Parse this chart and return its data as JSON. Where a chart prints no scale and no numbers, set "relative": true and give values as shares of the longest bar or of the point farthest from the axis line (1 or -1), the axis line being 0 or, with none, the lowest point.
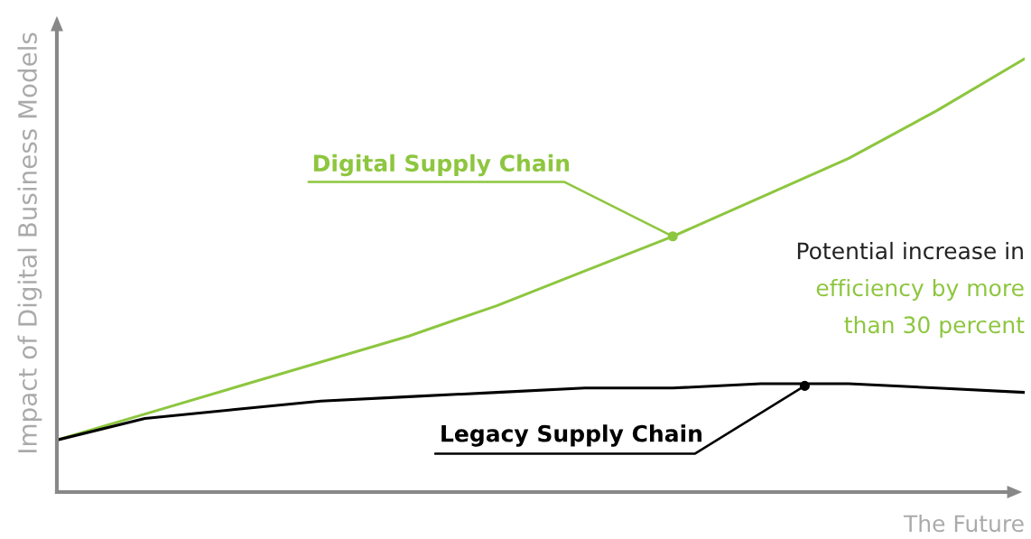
{
  "chart_data": {
    "type": "line",
    "relative": true,
    "xlabel": "The Future",
    "ylabel": "Impact of Digital Business Models",
    "categories": [
      null,
      null,
      null,
      null,
      null,
      null,
      null,
      null,
      null,
      null,
      null,
      null
    ],
    "series": [
      {
        "name": "Digital Supply Chain",
        "color": "#8dc63f",
        "values": [
          0.12,
          0.18,
          0.24,
          0.3,
          0.36,
          0.43,
          0.51,
          0.59,
          0.68,
          0.77,
          0.88,
          1.0
        ]
      },
      {
        "name": "Legacy Supply Chain",
        "color": "#000000",
        "values": [
          0.12,
          0.17,
          0.19,
          0.21,
          0.22,
          0.23,
          0.24,
          0.24,
          0.25,
          0.25,
          0.24,
          0.23
        ]
      }
    ],
    "annotations": [
      "Potential increase in",
      "efficiency by more",
      "than 30 percent"
    ],
    "legend": false,
    "marker": "none",
    "line_style": "solid"
  }
}
